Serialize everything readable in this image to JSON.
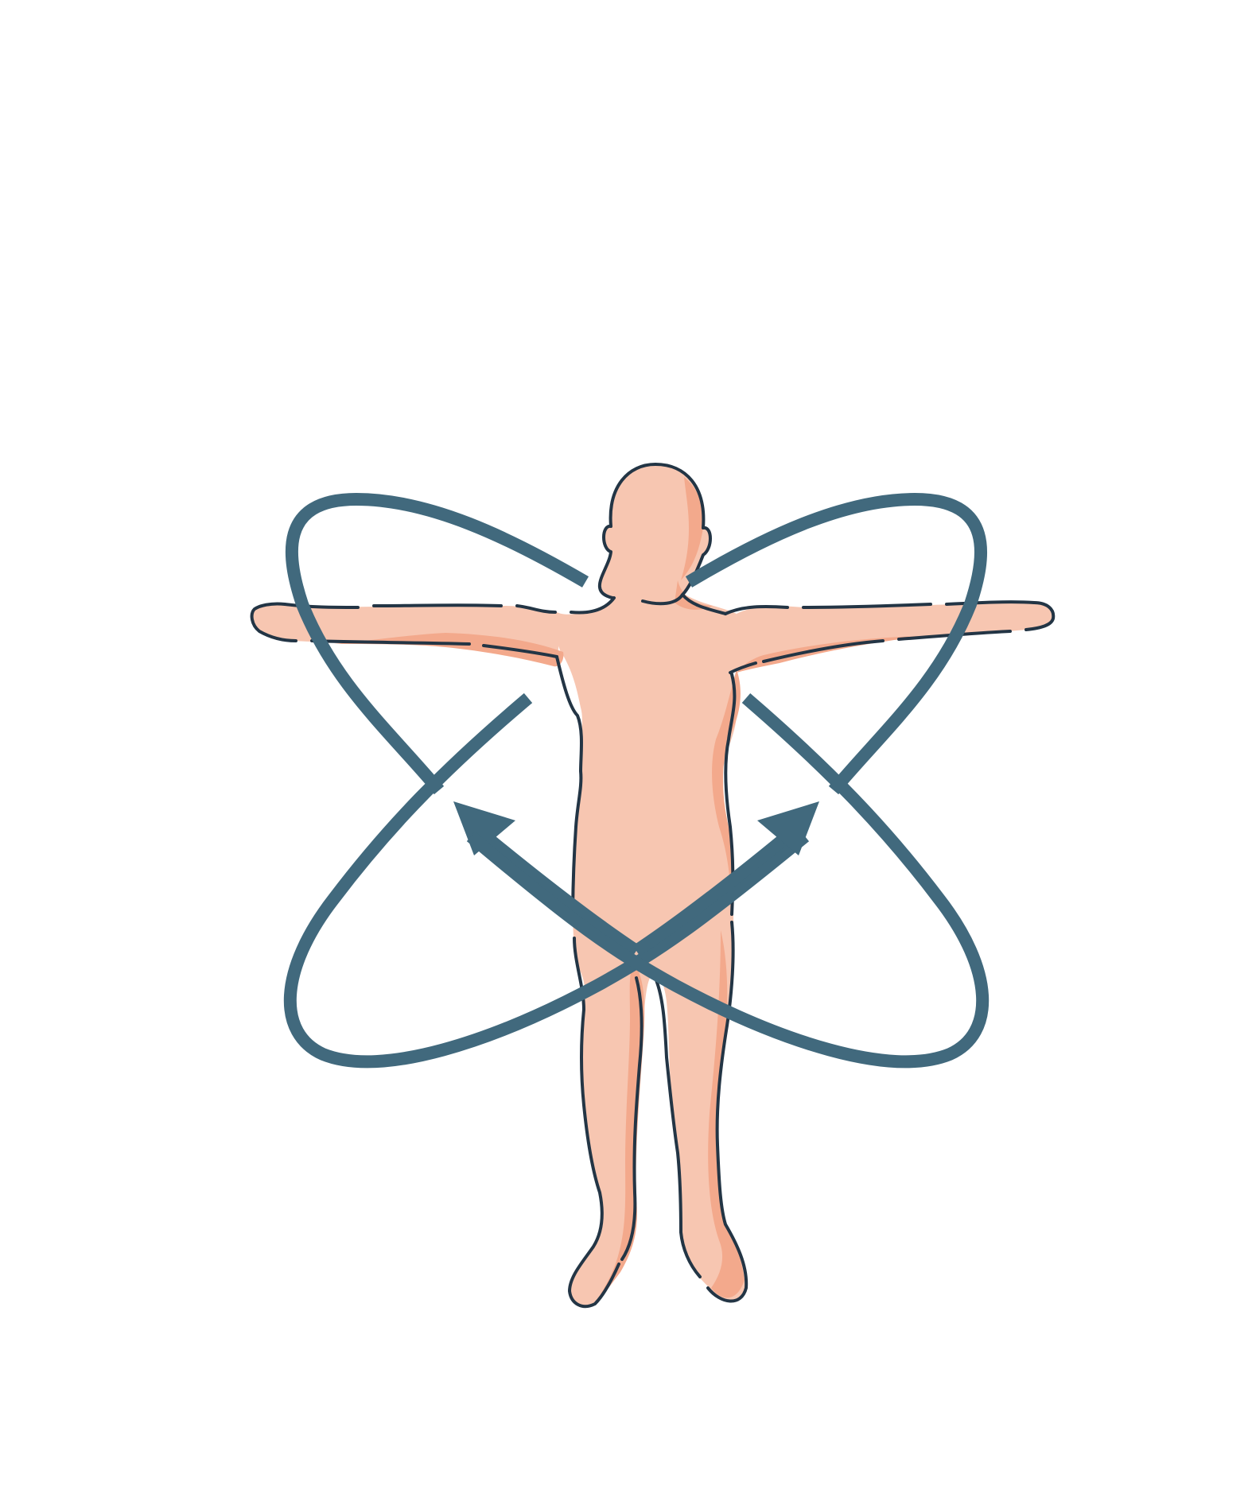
{
  "diagram": {
    "subject": "human-figure",
    "pose": "arms-extended-horizontally",
    "motion_loops": [
      {
        "name": "left-loop",
        "arrow_direction": "up-left"
      },
      {
        "name": "right-loop",
        "arrow_direction": "up-right"
      }
    ],
    "colors": {
      "skin": "#f7c6b1",
      "skin_shadow": "#f3a98c",
      "outline": "#233545",
      "loop": "#41697d",
      "background": "#ffffff"
    }
  }
}
